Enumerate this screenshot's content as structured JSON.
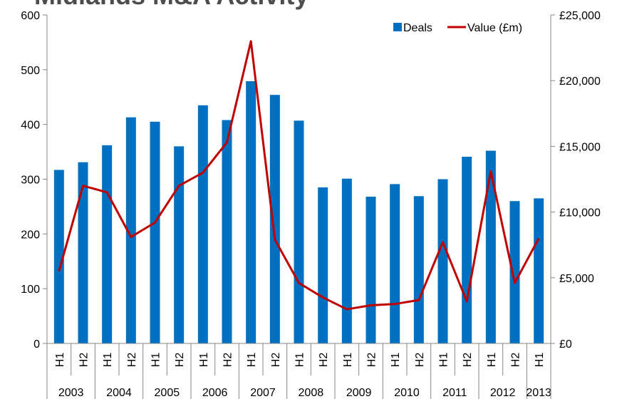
{
  "chart_data": {
    "type": "bar_line",
    "title": "Midlands M&A Activity",
    "categories": [
      "H1",
      "H2",
      "H1",
      "H2",
      "H1",
      "H2",
      "H1",
      "H2",
      "H1",
      "H2",
      "H1",
      "H2",
      "H1",
      "H2",
      "H1",
      "H2",
      "H1",
      "H2",
      "H1",
      "H2",
      "H1"
    ],
    "year_groups": [
      {
        "label": "2003",
        "count": 2
      },
      {
        "label": "2004",
        "count": 2
      },
      {
        "label": "2005",
        "count": 2
      },
      {
        "label": "2006",
        "count": 2
      },
      {
        "label": "2007",
        "count": 2
      },
      {
        "label": "2008",
        "count": 2
      },
      {
        "label": "2009",
        "count": 2
      },
      {
        "label": "2010",
        "count": 2
      },
      {
        "label": "2011",
        "count": 2
      },
      {
        "label": "2012",
        "count": 2
      },
      {
        "label": "2013",
        "count": 1
      }
    ],
    "series": [
      {
        "name": "Deals",
        "kind": "bar",
        "color": "#0070c0",
        "values": [
          317,
          331,
          362,
          413,
          405,
          360,
          435,
          408,
          479,
          454,
          407,
          285,
          301,
          268,
          291,
          269,
          300,
          341,
          352,
          260,
          265
        ]
      },
      {
        "name": "Value (£m)",
        "kind": "line",
        "axis": "y2",
        "color": "#c00000",
        "values": [
          5500,
          12000,
          11500,
          8100,
          9200,
          12000,
          13000,
          15300,
          23000,
          7900,
          4600,
          3500,
          2600,
          2900,
          3000,
          3300,
          7700,
          3200,
          13100,
          4600,
          8000
        ]
      }
    ],
    "ylim": [
      0,
      600
    ],
    "yticks": [
      0,
      100,
      200,
      300,
      400,
      500,
      600
    ],
    "y2lim": [
      0,
      25000
    ],
    "y2ticks": [
      {
        "value": 0,
        "label": "£0"
      },
      {
        "value": 5000,
        "label": "£5,000"
      },
      {
        "value": 10000,
        "label": "£10,000"
      },
      {
        "value": 15000,
        "label": "£15,000"
      },
      {
        "value": 20000,
        "label": "£20,000"
      },
      {
        "value": 25000,
        "label": "£25,000"
      }
    ],
    "legend": "top-right"
  }
}
